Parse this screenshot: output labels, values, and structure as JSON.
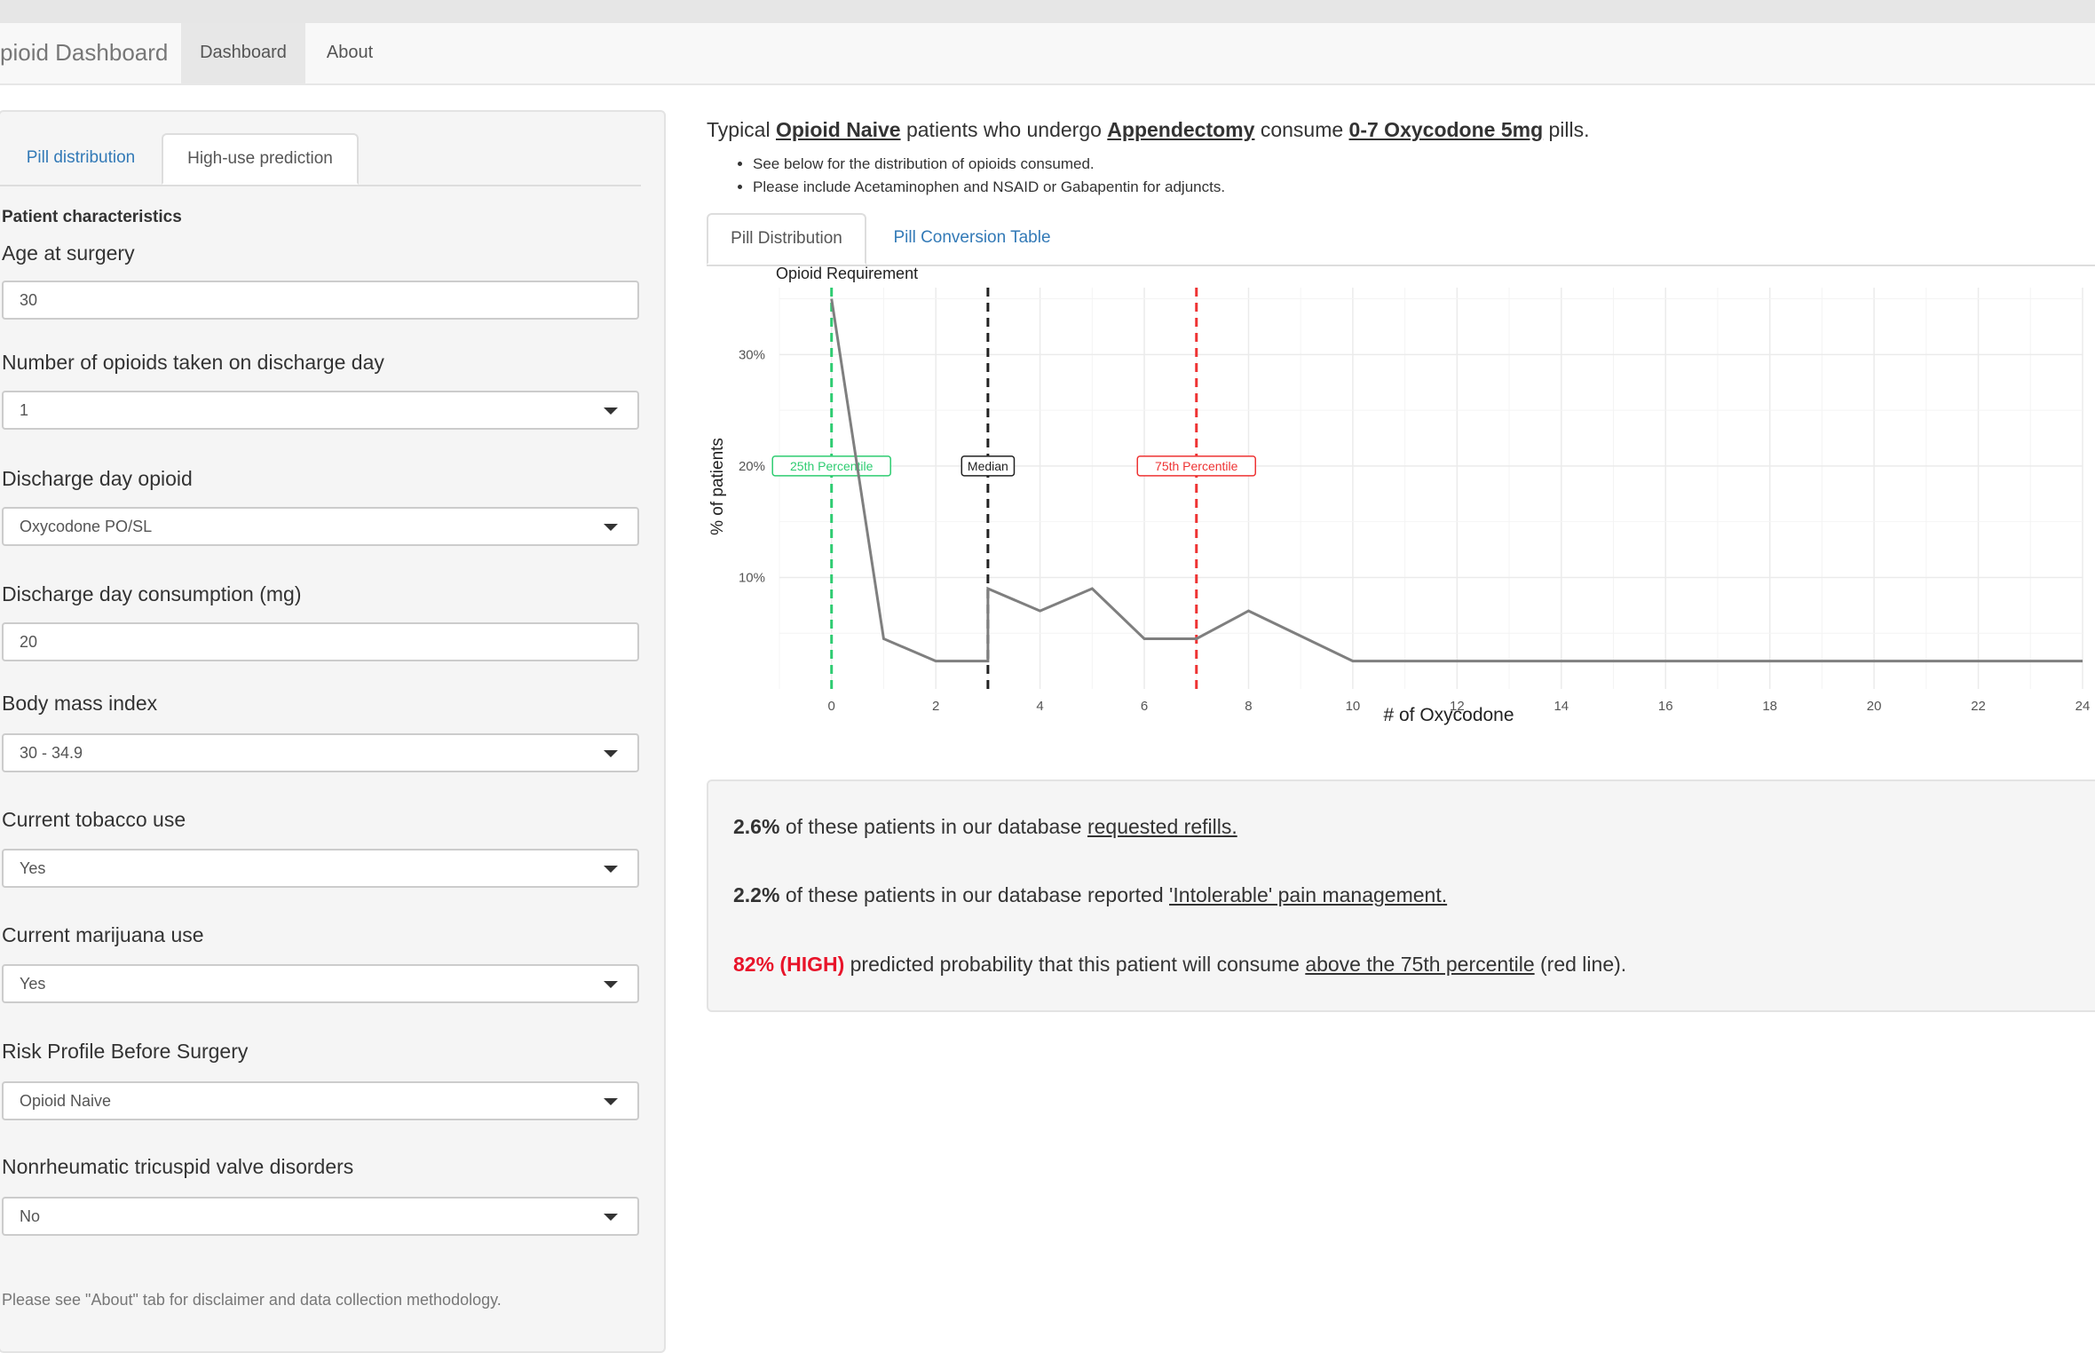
{
  "navbar": {
    "brand": "pioid Dashboard",
    "links": [
      "Dashboard",
      "About"
    ]
  },
  "sidebar": {
    "tabs": [
      "Pill distribution",
      "High-use prediction"
    ],
    "section_heading": "Patient characteristics",
    "fields": [
      {
        "label": "Age at surgery",
        "value": "30",
        "type": "text"
      },
      {
        "label": "Number of opioids taken on discharge day",
        "value": "1",
        "type": "select"
      },
      {
        "label": "Discharge day opioid",
        "value": "Oxycodone PO/SL",
        "type": "select"
      },
      {
        "label": "Discharge day consumption (mg)",
        "value": "20",
        "type": "text"
      },
      {
        "label": "Body mass index",
        "value": "30 - 34.9",
        "type": "select"
      },
      {
        "label": "Current tobacco use",
        "value": "Yes",
        "type": "select"
      },
      {
        "label": "Current marijuana use",
        "value": "Yes",
        "type": "select"
      },
      {
        "label": "Risk Profile Before Surgery",
        "value": "Opioid Naive",
        "type": "select"
      },
      {
        "label": "Nonrheumatic tricuspid valve disorders",
        "value": "No",
        "type": "select"
      }
    ],
    "note": "Please see \"About\" tab for disclaimer and data collection methodology."
  },
  "main": {
    "summary": {
      "prefix": "Typical ",
      "patient_type": "Opioid Naive",
      "mid1": " patients who undergo ",
      "procedure": "Appendectomy",
      "mid2": " consume ",
      "amount": "0-7 Oxycodone 5mg",
      "suffix": " pills."
    },
    "bullets": [
      "See below for the distribution of opioids consumed.",
      "Please include Acetaminophen and NSAID or Gabapentin for adjuncts."
    ],
    "tabs": [
      "Pill Distribution",
      "Pill Conversion Table"
    ],
    "stats": {
      "refill_pct": "2.6%",
      "refill_text": " of these patients in our database ",
      "refill_link": "requested refills.",
      "pain_pct": "2.2%",
      "pain_text": " of these patients in our database reported ",
      "pain_link": "'Intolerable' pain management.",
      "pred_value": "82% (HIGH)",
      "pred_text": " predicted probability that this patient will consume ",
      "pred_link": "above the 75th percentile",
      "pred_suffix": " (red line)."
    }
  },
  "chart_data": {
    "type": "line",
    "title": "Opioid Requirement",
    "xlabel": "# of Oxycodone",
    "ylabel": "% of patients",
    "xlim": [
      -1,
      24
    ],
    "ylim": [
      0,
      36
    ],
    "x_ticks": [
      0,
      2,
      4,
      6,
      8,
      10,
      12,
      14,
      16,
      18,
      20,
      22,
      24
    ],
    "y_ticks": [
      10,
      20,
      30
    ],
    "y_tick_labels": [
      "10%",
      "20%",
      "30%"
    ],
    "grid": true,
    "series": [
      {
        "color": "#7f7f7f",
        "x": [
          0,
          1,
          2,
          3,
          3,
          4,
          5,
          6,
          7,
          8,
          10,
          24
        ],
        "y": [
          35,
          4.5,
          2.5,
          2.5,
          9,
          7,
          9,
          4.5,
          4.5,
          7,
          2.5,
          2.5
        ]
      }
    ],
    "vlines": [
      {
        "x": 0,
        "label": "25th Percentile",
        "color": "#2ecc71"
      },
      {
        "x": 3,
        "label": "Median",
        "color": "#222222"
      },
      {
        "x": 7,
        "label": "75th Percentile",
        "color": "#ee3333"
      }
    ]
  }
}
